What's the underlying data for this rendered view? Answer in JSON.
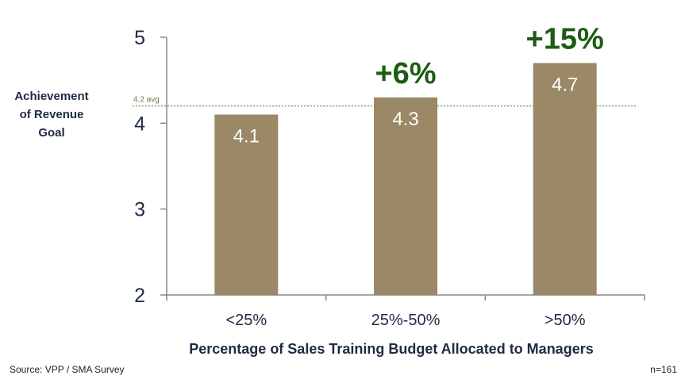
{
  "chart_data": {
    "type": "bar",
    "categories": [
      "<25%",
      "25%-50%",
      ">50%"
    ],
    "values": [
      4.1,
      4.3,
      4.7
    ],
    "value_labels": [
      "4.1",
      "4.3",
      "4.7"
    ],
    "increase_labels": [
      "",
      "+6%",
      "+15%"
    ],
    "xlabel": "Percentage of Sales Training Budget Allocated to Managers",
    "ylabel_lines": [
      "Achievement",
      "of Revenue",
      "Goal"
    ],
    "ylim": [
      2,
      5
    ],
    "yticks": [
      2,
      3,
      4,
      5
    ],
    "reference_line": {
      "value": 4.2,
      "label": "4.2 avg"
    },
    "grid": false,
    "colors": {
      "bar": "#9a8866",
      "increase": "#1e5c14",
      "axis": "#888888",
      "reference": "#7a7348",
      "value_text": "#ffffff"
    }
  },
  "footer": {
    "source": "Source: VPP / SMA Survey",
    "sample": "n=161"
  }
}
